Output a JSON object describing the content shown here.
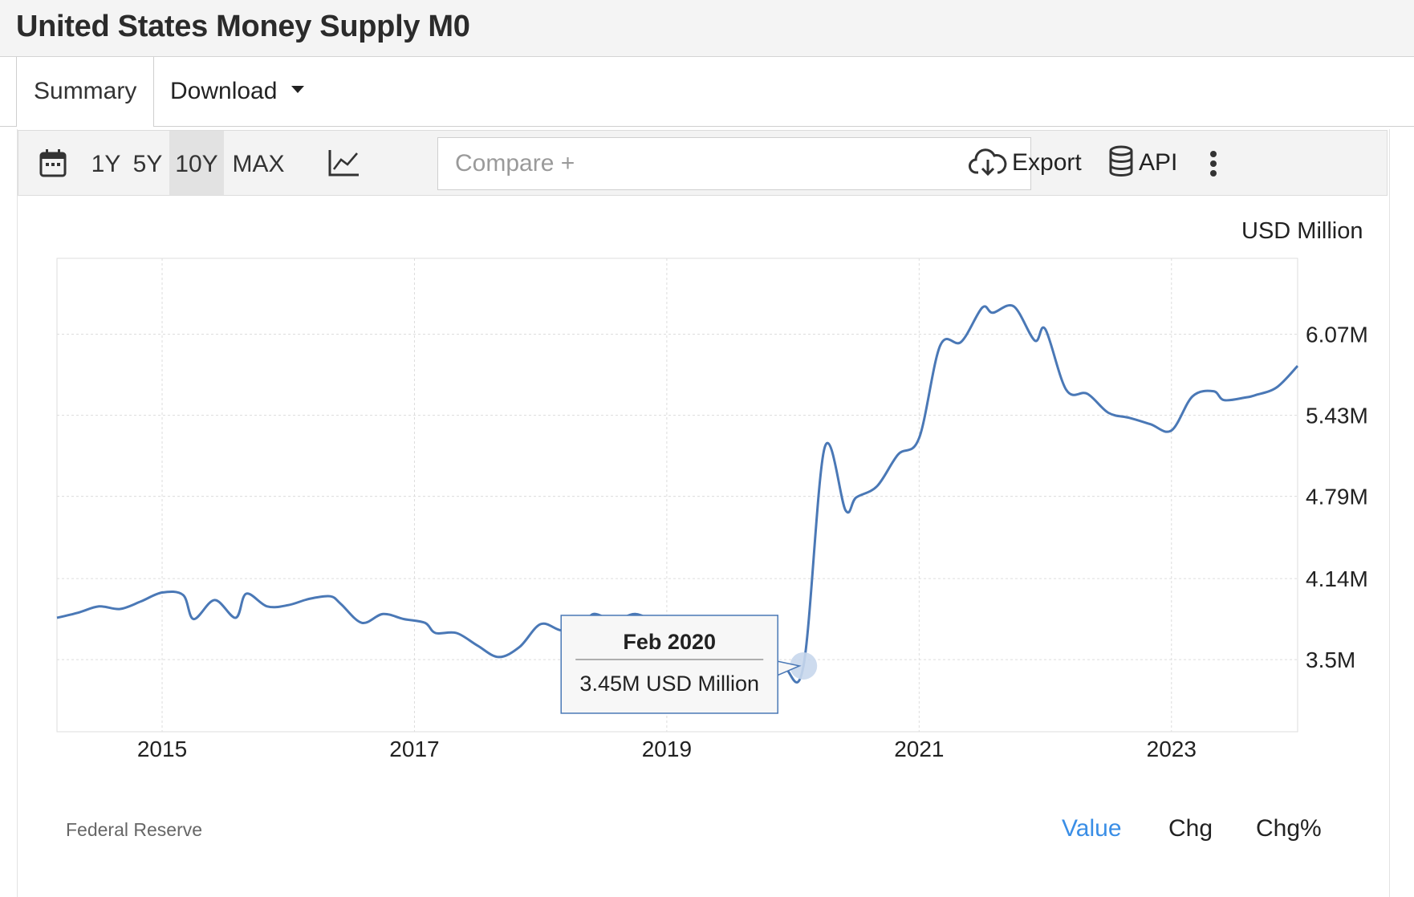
{
  "header": {
    "title": "United States Money Supply M0"
  },
  "tabs": [
    {
      "label": "Summary",
      "active": true
    },
    {
      "label": "Download",
      "has_dropdown": true
    }
  ],
  "toolbar": {
    "ranges": [
      "1Y",
      "5Y",
      "10Y",
      "MAX"
    ],
    "active_range": "10Y",
    "compare_placeholder": "Compare +",
    "export_label": "Export",
    "api_label": "API",
    "icons": [
      "calendar-icon",
      "line-chart-icon",
      "cloud-download-icon",
      "database-icon",
      "more-vertical-icon"
    ]
  },
  "chart_data": {
    "type": "line",
    "unit_label": "USD Million",
    "x_ticks": [
      "2015",
      "2017",
      "2019",
      "2021",
      "2023"
    ],
    "y_ticks": [
      "3.5M",
      "4.14M",
      "4.79M",
      "5.43M",
      "6.07M"
    ],
    "ylim": [
      2.93,
      6.67
    ],
    "xlim": [
      "2014-03",
      "2024-01"
    ],
    "grid": true,
    "series": [
      {
        "color": "#4a78b6",
        "points": [
          [
            "2014-03",
            3.83
          ],
          [
            "2014-05",
            3.87
          ],
          [
            "2014-07",
            3.92
          ],
          [
            "2014-09",
            3.9
          ],
          [
            "2014-11",
            3.96
          ],
          [
            "2015-01",
            4.03
          ],
          [
            "2015-03",
            4.01
          ],
          [
            "2015-04",
            3.82
          ],
          [
            "2015-06",
            3.97
          ],
          [
            "2015-08",
            3.83
          ],
          [
            "2015-09",
            4.02
          ],
          [
            "2015-11",
            3.92
          ],
          [
            "2016-01",
            3.93
          ],
          [
            "2016-03",
            3.98
          ],
          [
            "2016-05",
            4.0
          ],
          [
            "2016-06",
            3.94
          ],
          [
            "2016-08",
            3.79
          ],
          [
            "2016-10",
            3.86
          ],
          [
            "2016-12",
            3.82
          ],
          [
            "2017-02",
            3.79
          ],
          [
            "2017-03",
            3.71
          ],
          [
            "2017-05",
            3.71
          ],
          [
            "2017-07",
            3.61
          ],
          [
            "2017-09",
            3.52
          ],
          [
            "2017-11",
            3.6
          ],
          [
            "2018-01",
            3.78
          ],
          [
            "2018-03",
            3.73
          ],
          [
            "2018-05",
            3.75
          ],
          [
            "2018-06",
            3.86
          ],
          [
            "2018-08",
            3.81
          ],
          [
            "2018-10",
            3.86
          ],
          [
            "2018-12",
            3.8
          ],
          [
            "2019-02",
            3.81
          ],
          [
            "2019-04",
            3.76
          ],
          [
            "2019-07",
            3.65
          ],
          [
            "2019-09",
            3.52
          ],
          [
            "2019-12",
            3.45
          ],
          [
            "2020-02",
            3.45
          ],
          [
            "2020-04",
            5.17
          ],
          [
            "2020-06",
            4.68
          ],
          [
            "2020-07",
            4.78
          ],
          [
            "2020-09",
            4.87
          ],
          [
            "2020-11",
            5.12
          ],
          [
            "2021-01",
            5.25
          ],
          [
            "2021-03",
            5.98
          ],
          [
            "2021-05",
            6.01
          ],
          [
            "2021-07",
            6.28
          ],
          [
            "2021-08",
            6.24
          ],
          [
            "2021-10",
            6.29
          ],
          [
            "2021-12",
            6.02
          ],
          [
            "2022-01",
            6.11
          ],
          [
            "2022-03",
            5.63
          ],
          [
            "2022-05",
            5.6
          ],
          [
            "2022-07",
            5.45
          ],
          [
            "2022-09",
            5.41
          ],
          [
            "2022-11",
            5.36
          ],
          [
            "2023-01",
            5.31
          ],
          [
            "2023-03",
            5.58
          ],
          [
            "2023-05",
            5.62
          ],
          [
            "2023-06",
            5.55
          ],
          [
            "2023-08",
            5.57
          ],
          [
            "2023-09",
            5.59
          ],
          [
            "2023-11",
            5.65
          ],
          [
            "2024-01",
            5.82
          ]
        ]
      }
    ],
    "tooltip": {
      "date": "Feb 2020",
      "value_text": "3.45M USD Million",
      "point_x": "2020-02",
      "point_y": 3.45
    }
  },
  "footer": {
    "source": "Federal Reserve",
    "modes": [
      "Value",
      "Chg",
      "Chg%"
    ],
    "active_mode": "Value",
    "active_color": "#3a8ee6"
  }
}
